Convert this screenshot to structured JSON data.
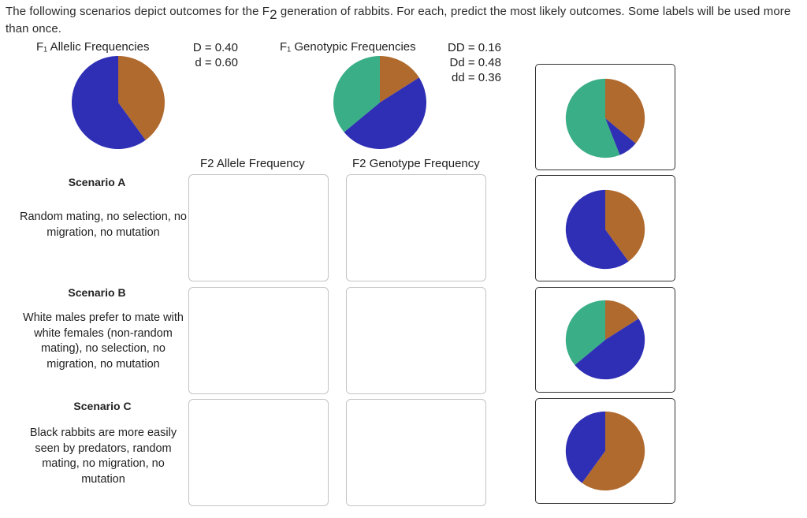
{
  "intro": {
    "prefix": "The following scenarios depict outcomes for the F",
    "sub": "2",
    "suffix": " generation of rabbits. For each, predict the most likely outcomes. Some labels will be used more than once."
  },
  "colors": {
    "brown_D": "#b06a2e",
    "blue_d": "#2f2fb5",
    "green_Dd": "#3aae86"
  },
  "f1_allelic": {
    "title": "F₁ Allelic Frequencies",
    "values": [
      "D = 0.40",
      "d = 0.60"
    ]
  },
  "f1_genotypic": {
    "title": "F₁ Genotypic Frequencies",
    "values": [
      "DD = 0.16",
      "Dd = 0.48",
      "dd = 0.36"
    ]
  },
  "columns": {
    "allele": "F2 Allele Frequency",
    "genotype": "F2 Genotype Frequency"
  },
  "scenarios": [
    {
      "title": "Scenario A",
      "description": "Random mating, no selection, no migration, no mutation"
    },
    {
      "title": "Scenario B",
      "description": "White males prefer to mate with white females (non-random mating), no selection, no migration, no mutation"
    },
    {
      "title": "Scenario C",
      "description": "Black rabbits are more easily seen by predators, random mating, no migration, no mutation"
    }
  ],
  "chart_data": [
    {
      "type": "pie",
      "title": "F₁ Allelic Frequencies",
      "categories": [
        "D",
        "d"
      ],
      "values": [
        0.4,
        0.6
      ],
      "colors": [
        "#b06a2e",
        "#2f2fb5"
      ]
    },
    {
      "type": "pie",
      "title": "F₁ Genotypic Frequencies",
      "categories": [
        "DD",
        "Dd",
        "dd"
      ],
      "values": [
        0.16,
        0.48,
        0.36
      ],
      "colors": [
        "#b06a2e",
        "#2f2fb5",
        "#3aae86"
      ]
    },
    {
      "type": "pie",
      "title": "Label card 1",
      "categories": [
        "brown",
        "blue",
        "green"
      ],
      "values": [
        0.36,
        0.08,
        0.56
      ],
      "colors": [
        "#b06a2e",
        "#2f2fb5",
        "#3aae86"
      ]
    },
    {
      "type": "pie",
      "title": "Label card 2",
      "categories": [
        "brown",
        "blue"
      ],
      "values": [
        0.4,
        0.6
      ],
      "colors": [
        "#b06a2e",
        "#2f2fb5"
      ]
    },
    {
      "type": "pie",
      "title": "Label card 3",
      "categories": [
        "brown",
        "blue",
        "green"
      ],
      "values": [
        0.16,
        0.48,
        0.36
      ],
      "colors": [
        "#b06a2e",
        "#2f2fb5",
        "#3aae86"
      ]
    },
    {
      "type": "pie",
      "title": "Label card 4",
      "categories": [
        "brown",
        "blue"
      ],
      "values": [
        0.6,
        0.4
      ],
      "colors": [
        "#b06a2e",
        "#2f2fb5"
      ]
    }
  ]
}
